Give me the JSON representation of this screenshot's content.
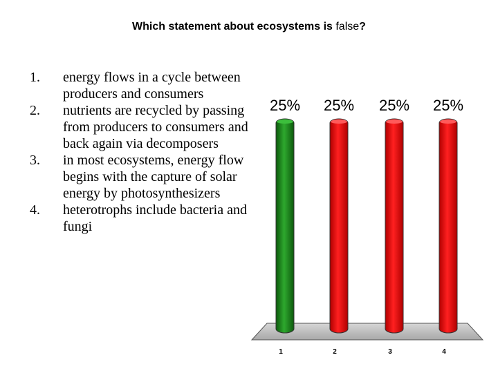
{
  "question": {
    "prefix": "Which statement about ecosystems is ",
    "emphasis": "false",
    "suffix": "?"
  },
  "options": [
    {
      "number": "1.",
      "text": "energy flows in a cycle between producers and consumers"
    },
    {
      "number": "2.",
      "text": "nutrients are recycled by passing from producers to consumers and back again via decomposers"
    },
    {
      "number": "3.",
      "text": "in most ecosystems, energy flow begins with the capture of solar energy by photosynthesizers"
    },
    {
      "number": "4.",
      "text": "heterotrophs include bacteria and fungi"
    }
  ],
  "chart_data": {
    "type": "bar",
    "categories": [
      "1",
      "2",
      "3",
      "4"
    ],
    "values": [
      25,
      25,
      25,
      25
    ],
    "value_labels": [
      "25%",
      "25%",
      "25%",
      "25%"
    ],
    "bar_colors": [
      "#1f8a1f",
      "#ff0000",
      "#ff0000",
      "#ff0000"
    ],
    "ylim": [
      0,
      25
    ],
    "grid": false,
    "floor_color": "#c0c0c0"
  }
}
